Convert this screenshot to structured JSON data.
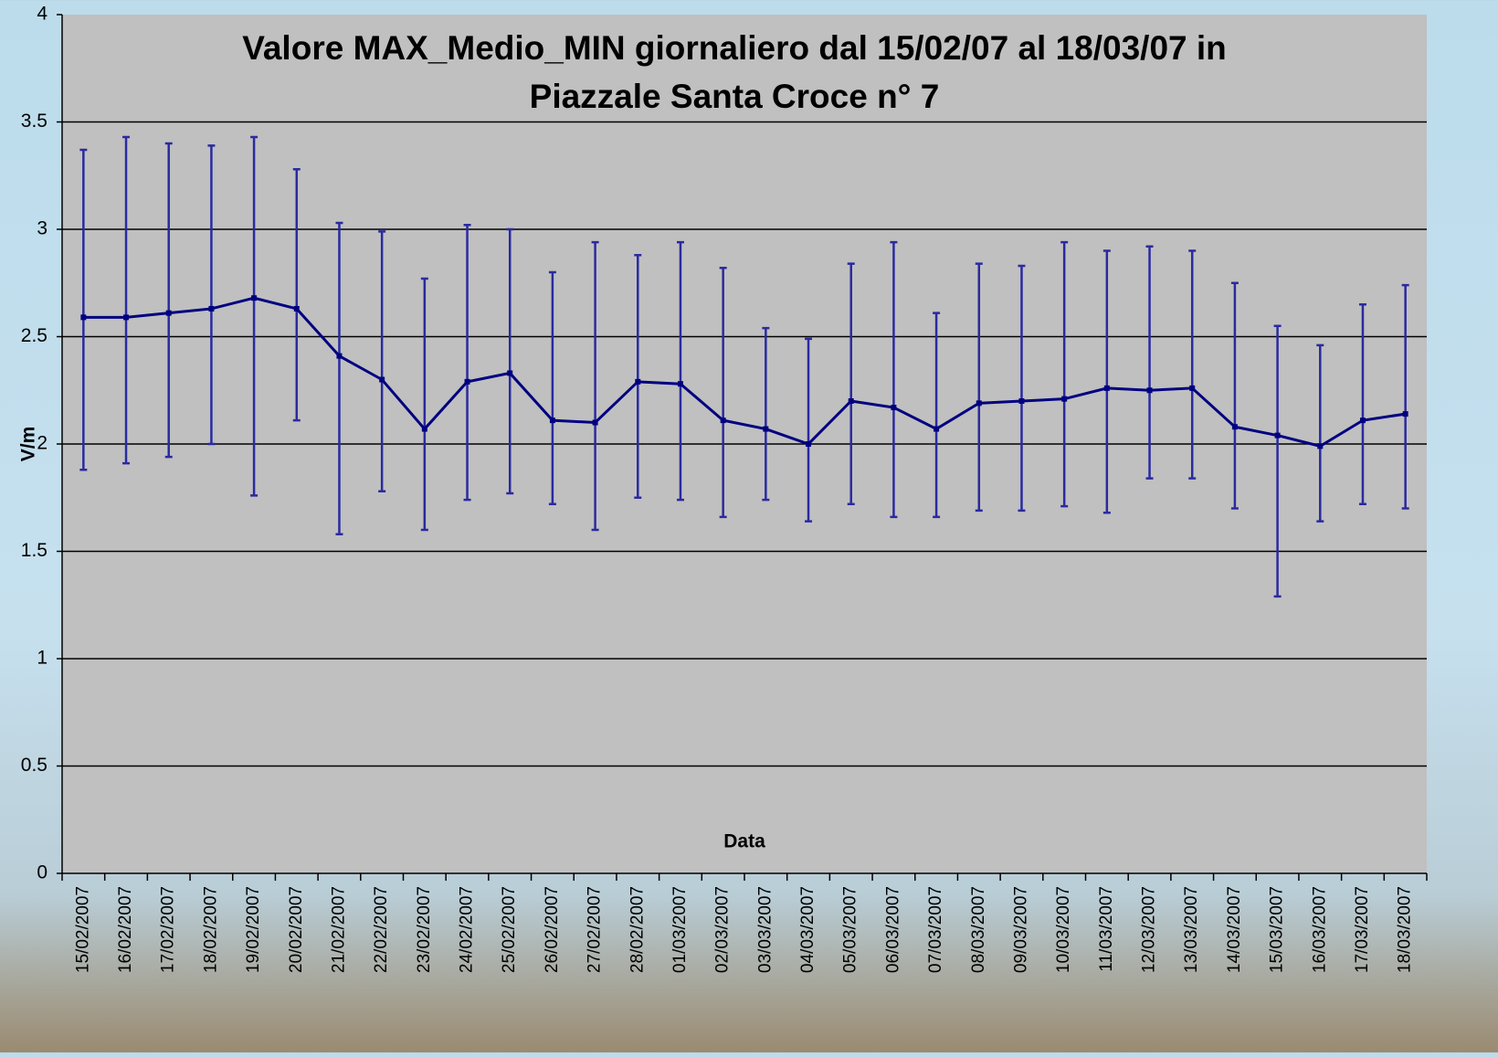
{
  "chart_data": {
    "type": "line",
    "title": [
      "Valore MAX_Medio_MIN giornaliero dal 15/02/07 al 18/03/07 in",
      "Piazzale Santa Croce n° 7"
    ],
    "x_label": "Data",
    "y_label": "V/m",
    "categories": [
      "15/02/2007",
      "16/02/2007",
      "17/02/2007",
      "18/02/2007",
      "19/02/2007",
      "20/02/2007",
      "21/02/2007",
      "22/02/2007",
      "23/02/2007",
      "24/02/2007",
      "25/02/2007",
      "26/02/2007",
      "27/02/2007",
      "28/02/2007",
      "01/03/2007",
      "02/03/2007",
      "03/03/2007",
      "04/03/2007",
      "05/03/2007",
      "06/03/2007",
      "07/03/2007",
      "08/03/2007",
      "09/03/2007",
      "10/03/2007",
      "11/03/2007",
      "12/03/2007",
      "13/03/2007",
      "14/03/2007",
      "15/03/2007",
      "16/03/2007",
      "17/03/2007",
      "18/03/2007"
    ],
    "series": [
      {
        "color": "#000080",
        "error_color": "#2a2aa0",
        "values": [
          2.59,
          2.59,
          2.61,
          2.63,
          2.68,
          2.63,
          2.41,
          2.3,
          2.07,
          2.29,
          2.33,
          2.11,
          2.1,
          2.29,
          2.28,
          2.11,
          2.07,
          2.0,
          2.2,
          2.17,
          2.07,
          2.19,
          2.2,
          2.21,
          2.26,
          2.25,
          2.26,
          2.08,
          2.04,
          1.99,
          2.11,
          2.14
        ],
        "max": [
          3.37,
          3.43,
          3.4,
          3.39,
          3.43,
          3.28,
          3.03,
          2.99,
          2.77,
          3.02,
          3.0,
          2.8,
          2.94,
          2.88,
          2.94,
          2.82,
          2.54,
          2.49,
          2.84,
          2.94,
          2.61,
          2.84,
          2.83,
          2.94,
          2.9,
          2.92,
          2.9,
          2.75,
          2.55,
          2.46,
          2.65,
          2.74
        ],
        "min": [
          1.88,
          1.91,
          1.94,
          2.0,
          1.76,
          2.11,
          1.58,
          1.78,
          1.6,
          1.74,
          1.77,
          1.72,
          1.6,
          1.75,
          1.74,
          1.66,
          1.74,
          1.64,
          1.72,
          1.66,
          1.66,
          1.69,
          1.69,
          1.71,
          1.68,
          1.84,
          1.84,
          1.7,
          1.29,
          1.64,
          1.72,
          1.7
        ]
      }
    ],
    "ylim": [
      0,
      4
    ],
    "yticks": [
      0,
      0.5,
      1,
      1.5,
      2,
      2.5,
      3,
      3.5,
      4
    ],
    "grid": true
  }
}
